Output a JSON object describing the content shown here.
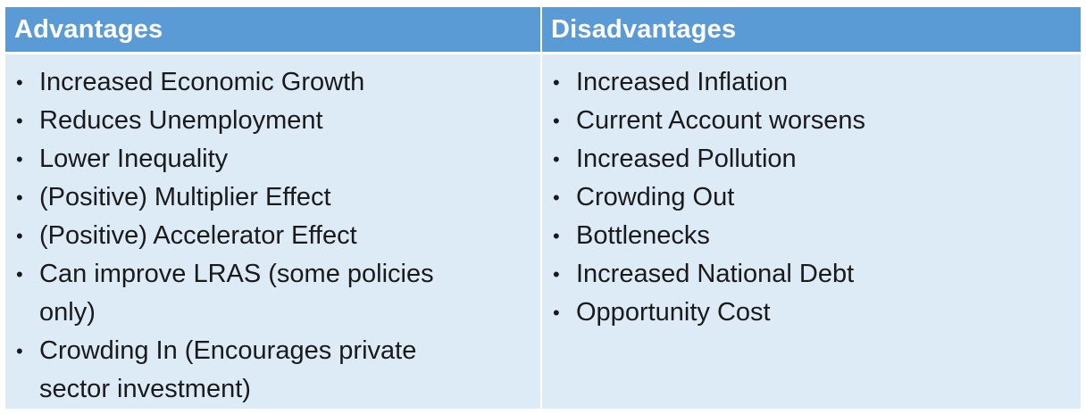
{
  "headers": {
    "advantages": "Advantages",
    "disadvantages": "Disadvantages"
  },
  "advantages": [
    "Increased Economic Growth",
    "Reduces Unemployment",
    "Lower Inequality",
    "(Positive) Multiplier Effect",
    "(Positive) Accelerator Effect",
    "Can improve LRAS (some policies only)",
    "Crowding In (Encourages private sector investment)"
  ],
  "disadvantages": [
    "Increased Inflation",
    "Current Account worsens",
    "Increased Pollution",
    "Crowding Out",
    "Bottlenecks",
    "Increased National Debt",
    "Opportunity Cost"
  ],
  "bullet_symbol": "•",
  "colors": {
    "header_bg": "#5b9bd5",
    "body_bg": "#ddebf7",
    "header_text": "#ffffff",
    "body_text": "#1a1a1a"
  }
}
